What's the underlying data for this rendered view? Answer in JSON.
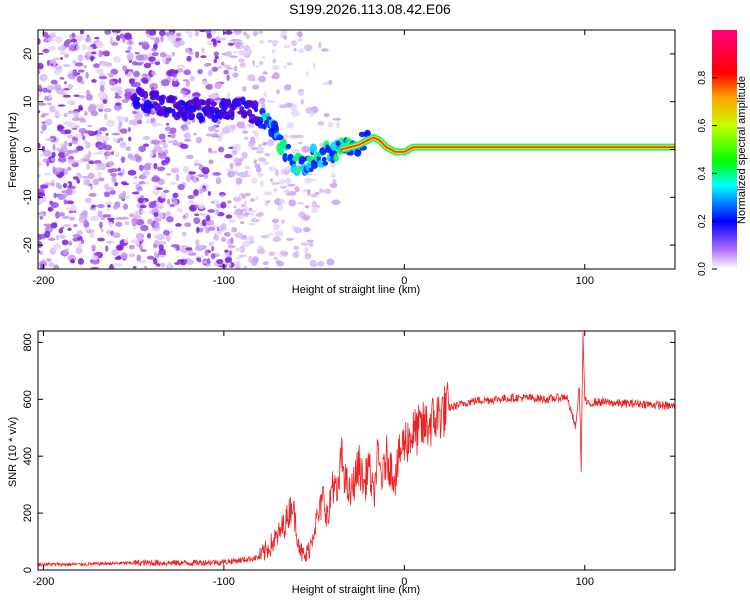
{
  "figure_title": "S199.2026.113.08.42.E06",
  "chart_data": [
    {
      "type": "heatmap",
      "name": "spectrogram",
      "xlabel": "Height of straight line (km)",
      "ylabel": "Frequency (Hz)",
      "xlim": [
        -203,
        150
      ],
      "ylim": [
        -25,
        25
      ],
      "xticks": [
        -200,
        -100,
        0,
        100
      ],
      "yticks": [
        -20,
        -10,
        0,
        10,
        20
      ],
      "xtick_labels": [
        "-200",
        "-100",
        "0",
        "100"
      ],
      "ytick_labels": [
        "-20",
        "-10",
        "0",
        "10",
        "20"
      ],
      "ridge": {
        "x": [
          -150,
          -140,
          -130,
          -120,
          -110,
          -100,
          -90,
          -80,
          -75,
          -70,
          -65,
          -60,
          -55,
          -50,
          -45,
          -40,
          -35,
          -30,
          -25,
          -20,
          -17,
          -14,
          -10,
          -5,
          0,
          5,
          10,
          15,
          20,
          40,
          60,
          80,
          90,
          95,
          100,
          120,
          150
        ],
        "y": [
          11,
          10,
          9,
          8.5,
          8,
          8.5,
          9,
          7,
          5,
          2,
          -1,
          -3,
          -4,
          -1.5,
          -1,
          -1,
          0,
          0.5,
          1,
          2,
          2.5,
          2,
          0.5,
          -0.5,
          -0.5,
          0.5,
          0.5,
          0.5,
          0.5,
          0.5,
          0.5,
          0.5,
          0.5,
          0.5,
          0.5,
          0.5,
          0.5
        ]
      }
    },
    {
      "type": "colorbar",
      "name": "amplitude-colorbar",
      "label": "Normalized spectral amplitude",
      "range": [
        0,
        1
      ],
      "ticks": [
        0.0,
        0.2,
        0.4,
        0.6,
        0.8
      ],
      "tick_labels": [
        "0.0",
        "0.2",
        "0.4",
        "0.6",
        "0.8"
      ],
      "colormap": [
        "#ffffff",
        "#8b00ff",
        "#0000ff",
        "#00ffff",
        "#00ff00",
        "#ffff00",
        "#ff0000",
        "#ff00a0"
      ]
    },
    {
      "type": "line",
      "name": "snr-trace",
      "xlabel": "Height of straight line (km)",
      "ylabel": "SNR (10 * v/v)",
      "xlim": [
        -203,
        150
      ],
      "ylim": [
        0,
        840
      ],
      "xticks": [
        -200,
        -100,
        0,
        100
      ],
      "yticks": [
        0,
        200,
        400,
        600,
        800
      ],
      "xtick_labels": [
        "-200",
        "-100",
        "0",
        "100"
      ],
      "ytick_labels": [
        "0",
        "200",
        "400",
        "600",
        "800"
      ],
      "series": [
        {
          "name": "SNR",
          "color": "#ee2222",
          "x": [
            -203,
            -180,
            -150,
            -120,
            -100,
            -90,
            -80,
            -75,
            -70,
            -65,
            -62,
            -60,
            -57,
            -55,
            -52,
            -50,
            -47,
            -45,
            -42,
            -40,
            -37,
            -35,
            -32,
            -30,
            -27,
            -25,
            -22,
            -20,
            -17,
            -15,
            -12,
            -10,
            -7,
            -5,
            -2,
            0,
            5,
            10,
            15,
            20,
            25,
            30,
            35,
            40,
            50,
            60,
            70,
            80,
            90,
            95,
            97,
            98,
            99,
            100,
            102,
            105,
            110,
            120,
            130,
            140,
            150
          ],
          "y": [
            20,
            20,
            25,
            25,
            28,
            35,
            45,
            80,
            120,
            180,
            240,
            150,
            60,
            40,
            90,
            150,
            200,
            260,
            170,
            320,
            250,
            400,
            300,
            260,
            330,
            370,
            290,
            380,
            250,
            390,
            320,
            400,
            350,
            330,
            420,
            450,
            480,
            500,
            520,
            550,
            570,
            580,
            590,
            595,
            600,
            605,
            605,
            600,
            610,
            500,
            650,
            360,
            830,
            600,
            580,
            590,
            590,
            585,
            585,
            580,
            575
          ]
        }
      ]
    }
  ]
}
